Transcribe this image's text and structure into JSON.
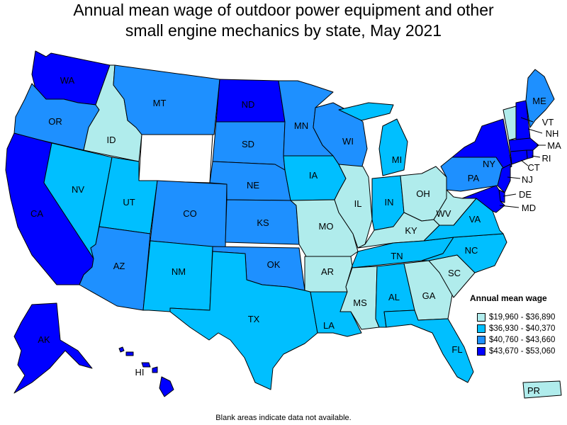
{
  "title_line1": "Annual mean wage of outdoor power equipment and other",
  "title_line2": "small engine mechanics by state, May 2021",
  "legend": {
    "title": "Annual mean wage",
    "ranges": [
      {
        "label": "$19,960 - $36,890",
        "color": "#b0ecec"
      },
      {
        "label": "$36,930 - $40,370",
        "color": "#00bfff"
      },
      {
        "label": "$40,760 - $43,660",
        "color": "#1e90ff"
      },
      {
        "label": "$43,670 - $53,060",
        "color": "#0000ff"
      }
    ]
  },
  "footnote": "Blank areas indicate data not available.",
  "states": {
    "WA": {
      "label": "WA",
      "color": "#0000ff"
    },
    "OR": {
      "label": "OR",
      "color": "#1e90ff"
    },
    "CA": {
      "label": "CA",
      "color": "#0000ff"
    },
    "NV": {
      "label": "NV",
      "color": "#00bfff"
    },
    "ID": {
      "label": "ID",
      "color": "#b0ecec"
    },
    "MT": {
      "label": "MT",
      "color": "#1e90ff"
    },
    "WY": {
      "label": "",
      "color": "#ffffff"
    },
    "UT": {
      "label": "UT",
      "color": "#00bfff"
    },
    "AZ": {
      "label": "AZ",
      "color": "#1e90ff"
    },
    "CO": {
      "label": "CO",
      "color": "#1e90ff"
    },
    "NM": {
      "label": "NM",
      "color": "#00bfff"
    },
    "ND": {
      "label": "ND",
      "color": "#0000ff"
    },
    "SD": {
      "label": "SD",
      "color": "#1e90ff"
    },
    "NE": {
      "label": "NE",
      "color": "#1e90ff"
    },
    "KS": {
      "label": "KS",
      "color": "#1e90ff"
    },
    "OK": {
      "label": "OK",
      "color": "#1e90ff"
    },
    "TX": {
      "label": "TX",
      "color": "#00bfff"
    },
    "MN": {
      "label": "MN",
      "color": "#1e90ff"
    },
    "IA": {
      "label": "IA",
      "color": "#00bfff"
    },
    "MO": {
      "label": "MO",
      "color": "#b0ecec"
    },
    "AR": {
      "label": "AR",
      "color": "#b0ecec"
    },
    "LA": {
      "label": "LA",
      "color": "#00bfff"
    },
    "WI": {
      "label": "WI",
      "color": "#1e90ff"
    },
    "IL": {
      "label": "IL",
      "color": "#b0ecec"
    },
    "MI": {
      "label": "MI",
      "color": "#00bfff"
    },
    "IN": {
      "label": "IN",
      "color": "#00bfff"
    },
    "OH": {
      "label": "OH",
      "color": "#b0ecec"
    },
    "KY": {
      "label": "KY",
      "color": "#b0ecec"
    },
    "TN": {
      "label": "TN",
      "color": "#00bfff"
    },
    "MS": {
      "label": "MS",
      "color": "#b0ecec"
    },
    "AL": {
      "label": "AL",
      "color": "#00bfff"
    },
    "GA": {
      "label": "GA",
      "color": "#b0ecec"
    },
    "FL": {
      "label": "FL",
      "color": "#00bfff"
    },
    "SC": {
      "label": "SC",
      "color": "#b0ecec"
    },
    "NC": {
      "label": "NC",
      "color": "#00bfff"
    },
    "VA": {
      "label": "VA",
      "color": "#00bfff"
    },
    "WV": {
      "label": "WV",
      "color": "#b0ecec"
    },
    "PA": {
      "label": "PA",
      "color": "#1e90ff"
    },
    "NY": {
      "label": "NY",
      "color": "#0000ff"
    },
    "VT": {
      "label": "VT",
      "color": "#b0ecec"
    },
    "NH": {
      "label": "NH",
      "color": "#0000ff"
    },
    "ME": {
      "label": "ME",
      "color": "#1e90ff"
    },
    "MA": {
      "label": "MA",
      "color": "#0000ff"
    },
    "RI": {
      "label": "RI",
      "color": "#0000ff"
    },
    "CT": {
      "label": "CT",
      "color": "#0000ff"
    },
    "NJ": {
      "label": "NJ",
      "color": "#0000ff"
    },
    "DE": {
      "label": "DE",
      "color": "#0000ff"
    },
    "MD": {
      "label": "MD",
      "color": "#0000ff"
    },
    "AK": {
      "label": "AK",
      "color": "#0000ff"
    },
    "HI": {
      "label": "HI",
      "color": "#0000ff"
    },
    "PR": {
      "label": "PR",
      "color": "#b0ecec"
    }
  }
}
